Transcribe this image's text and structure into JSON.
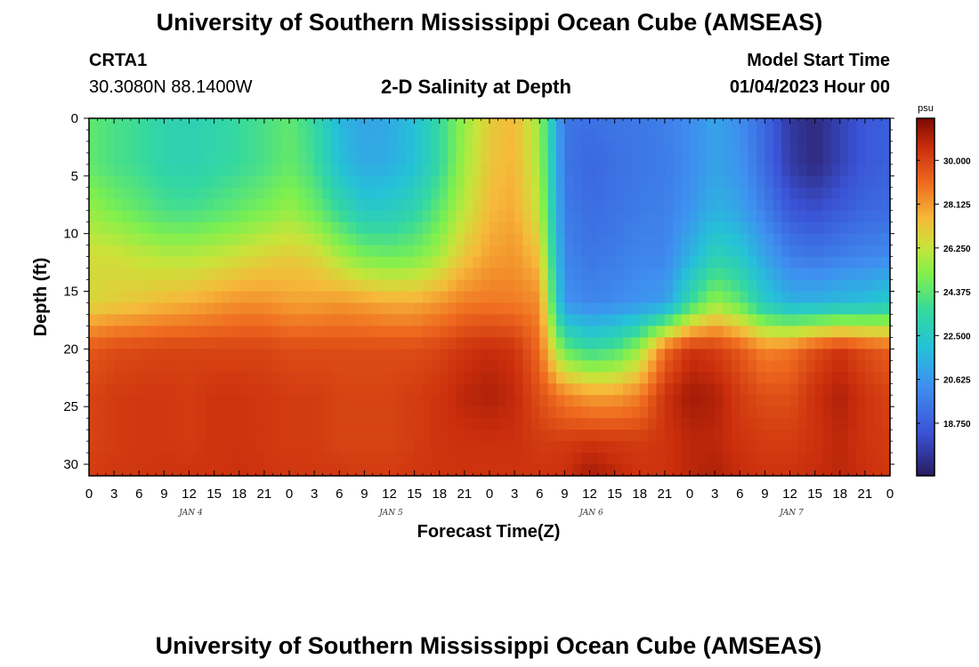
{
  "header": {
    "title": "University of Southern Mississippi Ocean Cube (AMSEAS)",
    "station": "CRTA1",
    "coords": "30.3080N  88.1400W",
    "chart_title": "2-D Salinity at Depth",
    "model_start_label": "Model Start Time",
    "model_start_value": "01/04/2023 Hour 00"
  },
  "footer": {
    "title": "University of Southern Mississippi Ocean Cube (AMSEAS)"
  },
  "colors": {
    "colormap": [
      "#2a1a5e",
      "#3a53d6",
      "#3f8ff0",
      "#25c1d8",
      "#34d8a0",
      "#7ef04e",
      "#c8e43a",
      "#f6b93a",
      "#ef6a1f",
      "#c92d0c",
      "#7a0a02"
    ]
  },
  "chart_data": {
    "type": "heatmap",
    "title": "2-D Salinity at Depth",
    "xlabel": "Forecast Time(Z)",
    "ylabel": "Depth (ft)",
    "x_ticks": [
      "0",
      "3",
      "6",
      "9",
      "12",
      "15",
      "18",
      "21",
      "0",
      "3",
      "6",
      "9",
      "12",
      "15",
      "18",
      "21",
      "0",
      "3",
      "6",
      "9",
      "12",
      "15",
      "18",
      "21",
      "0",
      "3",
      "6",
      "9",
      "12",
      "15",
      "18",
      "21",
      "0"
    ],
    "date_labels": [
      {
        "label": "JAN 4",
        "hour": 12
      },
      {
        "label": "JAN 5",
        "hour": 36
      },
      {
        "label": "JAN 6",
        "hour": 60
      },
      {
        "label": "JAN 7",
        "hour": 84
      }
    ],
    "x_range_hours": [
      0,
      96
    ],
    "y_ticks": [
      0,
      5,
      10,
      15,
      20,
      25,
      30
    ],
    "y_range_ft": [
      0,
      31
    ],
    "colorbar": {
      "unit": "psu",
      "labels": [
        "30.000",
        "28.125",
        "26.250",
        "24.375",
        "22.500",
        "20.625",
        "18.750"
      ],
      "range": [
        16.5,
        31.8
      ]
    },
    "grid_hours": [
      0,
      3,
      6,
      9,
      12,
      15,
      18,
      21,
      24,
      27,
      30,
      33,
      36,
      39,
      42,
      45,
      48,
      51,
      54,
      57,
      60,
      63,
      66,
      69,
      72,
      75,
      78,
      81,
      84,
      87,
      90,
      93,
      96
    ],
    "grid_depths_ft": [
      0,
      4,
      8,
      12,
      16,
      20,
      24,
      28,
      31
    ],
    "salinity_psu": [
      [
        24.5,
        24.5,
        25.5,
        26.5,
        26.7
      ],
      [
        24.0,
        24.0,
        25.0,
        26.5,
        27.0
      ],
      [
        23.7,
        23.7,
        24.5,
        26.2,
        27.2
      ],
      [
        23.2,
        23.2,
        24.0,
        26.0,
        27.5
      ],
      [
        23.0,
        23.0,
        23.9,
        26.0,
        27.7
      ],
      [
        23.2,
        23.3,
        24.2,
        26.2,
        28.0
      ],
      [
        23.6,
        23.6,
        24.6,
        26.5,
        28.3
      ],
      [
        24.0,
        24.0,
        25.0,
        26.8,
        28.3
      ],
      [
        24.5,
        24.6,
        25.5,
        27.0,
        28.0
      ],
      [
        23.5,
        23.8,
        24.8,
        26.8,
        28.0
      ],
      [
        21.7,
        22.0,
        23.5,
        25.8,
        28.2
      ],
      [
        21.0,
        21.2,
        22.5,
        25.0,
        28.0
      ],
      [
        21.2,
        21.4,
        22.6,
        24.8,
        27.8
      ],
      [
        22.0,
        22.0,
        23.2,
        25.0,
        27.8
      ],
      [
        23.5,
        23.5,
        24.5,
        25.8,
        28.2
      ],
      [
        25.5,
        25.7,
        26.2,
        27.2,
        28.7
      ],
      [
        27.0,
        27.2,
        27.5,
        28.0,
        28.8
      ],
      [
        27.5,
        27.6,
        27.8,
        28.2,
        28.7
      ],
      [
        25.5,
        25.7,
        26.2,
        27.3,
        28.4
      ],
      [
        19.5,
        19.5,
        19.7,
        20.0,
        20.5
      ],
      [
        19.3,
        19.0,
        19.2,
        19.5,
        20.0
      ],
      [
        19.5,
        19.3,
        19.4,
        19.7,
        20.2
      ],
      [
        19.6,
        19.5,
        19.7,
        20.0,
        20.5
      ],
      [
        19.8,
        19.7,
        19.8,
        20.0,
        20.8
      ],
      [
        20.3,
        20.2,
        20.5,
        21.5,
        23.5
      ],
      [
        21.0,
        21.0,
        21.5,
        23.0,
        25.5
      ],
      [
        20.3,
        20.5,
        21.0,
        22.5,
        24.5
      ],
      [
        19.0,
        19.1,
        19.8,
        21.0,
        22.5
      ],
      [
        17.5,
        17.6,
        18.5,
        19.8,
        21.5
      ],
      [
        17.0,
        17.0,
        18.2,
        19.5,
        21.5
      ],
      [
        17.8,
        17.8,
        18.6,
        19.8,
        21.8
      ],
      [
        18.5,
        18.5,
        19.0,
        20.0,
        22.0
      ],
      [
        18.8,
        18.8,
        19.2,
        20.2,
        22.5
      ]
    ],
    "salinity_psu_deep": [
      [
        29.5,
        30.0,
        30.0,
        30.2
      ],
      [
        29.8,
        30.2,
        30.2,
        30.3
      ],
      [
        29.9,
        30.3,
        30.3,
        30.3
      ],
      [
        30.0,
        30.3,
        30.3,
        30.4
      ],
      [
        30.0,
        30.2,
        30.2,
        30.4
      ],
      [
        30.0,
        30.4,
        30.4,
        30.4
      ],
      [
        30.0,
        30.4,
        30.4,
        30.5
      ],
      [
        30.0,
        30.3,
        30.3,
        30.4
      ],
      [
        29.8,
        30.2,
        30.2,
        30.3
      ],
      [
        29.8,
        30.2,
        30.2,
        30.3
      ],
      [
        29.8,
        30.0,
        30.0,
        30.3
      ],
      [
        29.8,
        30.0,
        30.0,
        30.2
      ],
      [
        29.8,
        30.0,
        30.0,
        30.2
      ],
      [
        29.8,
        30.2,
        30.2,
        30.3
      ],
      [
        30.0,
        30.4,
        30.4,
        30.4
      ],
      [
        30.4,
        30.8,
        30.5,
        30.4
      ],
      [
        30.6,
        31.0,
        30.5,
        30.4
      ],
      [
        30.4,
        30.7,
        30.5,
        30.4
      ],
      [
        29.0,
        29.7,
        30.2,
        30.4
      ],
      [
        24.5,
        28.6,
        30.2,
        30.5
      ],
      [
        23.5,
        28.0,
        30.4,
        31.2
      ],
      [
        24.0,
        28.0,
        30.3,
        30.8
      ],
      [
        25.5,
        28.6,
        30.2,
        30.4
      ],
      [
        29.0,
        30.4,
        30.4,
        30.4
      ],
      [
        30.4,
        31.2,
        30.8,
        30.8
      ],
      [
        30.2,
        31.0,
        30.8,
        31.0
      ],
      [
        29.5,
        30.2,
        30.4,
        30.6
      ],
      [
        28.5,
        29.7,
        30.2,
        30.4
      ],
      [
        28.8,
        29.7,
        30.2,
        30.4
      ],
      [
        29.8,
        30.5,
        30.4,
        30.6
      ],
      [
        30.4,
        31.0,
        30.8,
        30.8
      ],
      [
        29.8,
        30.4,
        30.4,
        30.5
      ],
      [
        29.3,
        30.0,
        30.2,
        30.3
      ]
    ]
  }
}
